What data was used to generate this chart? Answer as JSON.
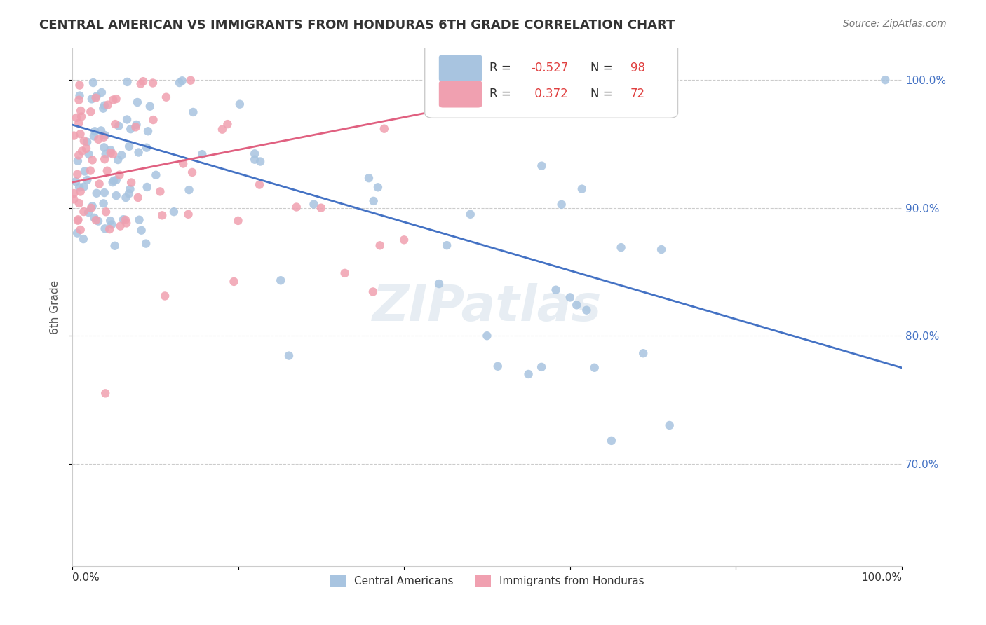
{
  "title": "CENTRAL AMERICAN VS IMMIGRANTS FROM HONDURAS 6TH GRADE CORRELATION CHART",
  "source": "Source: ZipAtlas.com",
  "ylabel": "6th Grade",
  "blue_color": "#a8c4e0",
  "pink_color": "#f0a0b0",
  "blue_line_color": "#4472c4",
  "pink_line_color": "#e06080",
  "blue_r": -0.527,
  "blue_n": 98,
  "pink_r": 0.372,
  "pink_n": 72,
  "legend_r_color": "#4040c0",
  "legend_n_color": "#e04040",
  "watermark": "ZIPatlas",
  "ytick_labels": [
    "70.0%",
    "80.0%",
    "90.0%",
    "100.0%"
  ],
  "ytick_values": [
    0.7,
    0.8,
    0.9,
    1.0
  ],
  "xlim": [
    0.0,
    1.0
  ],
  "ylim": [
    0.62,
    1.025
  ]
}
